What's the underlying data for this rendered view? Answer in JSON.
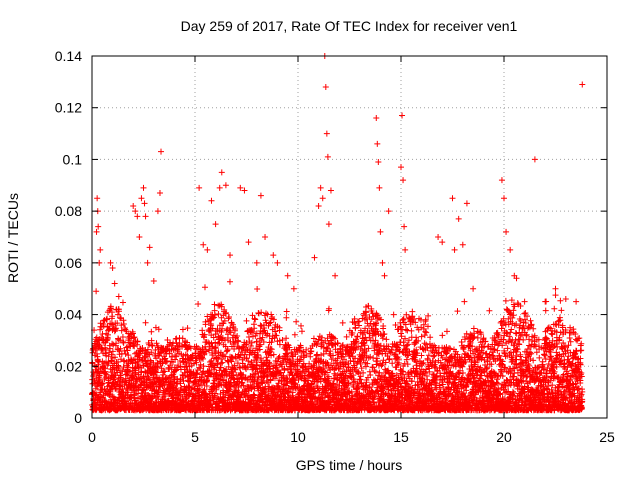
{
  "chart_data": {
    "type": "scatter",
    "title": "Day 259 of 2017, Rate Of TEC Index for receiver ven1",
    "xlabel": "GPS time / hours",
    "ylabel": "ROTI / TECUs",
    "xlim": [
      0,
      25
    ],
    "ylim": [
      0,
      0.14
    ],
    "xticks": [
      0,
      5,
      10,
      15,
      20,
      25
    ],
    "yticks": [
      0,
      0.02,
      0.04,
      0.06,
      0.08,
      0.1,
      0.12,
      0.14
    ],
    "xtick_labels": [
      "0",
      "5",
      "10",
      "15",
      "20",
      "25"
    ],
    "ytick_labels": [
      "0",
      "0.02",
      "0.04",
      "0.06",
      "0.08",
      "0.1",
      "0.12",
      "0.14"
    ],
    "grid": true,
    "marker": "+",
    "series": [
      {
        "name": "ROTI",
        "color": "#ff0000",
        "dense_band": {
          "x_start": 0.0,
          "x_end": 23.8,
          "typical_min": 0.003,
          "typical_max": 0.035
        },
        "points": [
          [
            0.1,
            0.034
          ],
          [
            0.2,
            0.049
          ],
          [
            0.22,
            0.072
          ],
          [
            0.25,
            0.085
          ],
          [
            0.28,
            0.08
          ],
          [
            0.3,
            0.074
          ],
          [
            0.35,
            0.06
          ],
          [
            0.4,
            0.065
          ],
          [
            0.9,
            0.06
          ],
          [
            1.0,
            0.058
          ],
          [
            1.1,
            0.052
          ],
          [
            1.3,
            0.047
          ],
          [
            2.0,
            0.082
          ],
          [
            2.1,
            0.08
          ],
          [
            2.2,
            0.078
          ],
          [
            2.3,
            0.07
          ],
          [
            2.4,
            0.085
          ],
          [
            2.5,
            0.089
          ],
          [
            2.55,
            0.083
          ],
          [
            2.6,
            0.078
          ],
          [
            2.7,
            0.06
          ],
          [
            2.8,
            0.066
          ],
          [
            3.0,
            0.053
          ],
          [
            3.2,
            0.08
          ],
          [
            3.3,
            0.087
          ],
          [
            3.35,
            0.103
          ],
          [
            5.2,
            0.089
          ],
          [
            5.4,
            0.067
          ],
          [
            5.6,
            0.065
          ],
          [
            5.8,
            0.084
          ],
          [
            6.0,
            0.075
          ],
          [
            6.2,
            0.089
          ],
          [
            6.3,
            0.095
          ],
          [
            6.5,
            0.09
          ],
          [
            6.7,
            0.063
          ],
          [
            7.2,
            0.089
          ],
          [
            7.4,
            0.088
          ],
          [
            7.6,
            0.068
          ],
          [
            8.0,
            0.06
          ],
          [
            8.2,
            0.086
          ],
          [
            8.4,
            0.07
          ],
          [
            8.8,
            0.063
          ],
          [
            9.0,
            0.06
          ],
          [
            9.5,
            0.055
          ],
          [
            9.8,
            0.05
          ],
          [
            10.8,
            0.062
          ],
          [
            11.0,
            0.082
          ],
          [
            11.1,
            0.089
          ],
          [
            11.2,
            0.085
          ],
          [
            11.3,
            0.14
          ],
          [
            11.35,
            0.128
          ],
          [
            11.4,
            0.11
          ],
          [
            11.45,
            0.101
          ],
          [
            11.5,
            0.075
          ],
          [
            11.6,
            0.088
          ],
          [
            11.8,
            0.055
          ],
          [
            13.8,
            0.116
          ],
          [
            13.85,
            0.106
          ],
          [
            13.9,
            0.099
          ],
          [
            13.95,
            0.089
          ],
          [
            14.0,
            0.072
          ],
          [
            14.1,
            0.06
          ],
          [
            14.2,
            0.055
          ],
          [
            14.4,
            0.08
          ],
          [
            15.0,
            0.097
          ],
          [
            15.05,
            0.117
          ],
          [
            15.1,
            0.092
          ],
          [
            15.15,
            0.074
          ],
          [
            15.2,
            0.065
          ],
          [
            16.8,
            0.07
          ],
          [
            17.0,
            0.068
          ],
          [
            17.5,
            0.085
          ],
          [
            17.6,
            0.065
          ],
          [
            17.8,
            0.077
          ],
          [
            18.0,
            0.067
          ],
          [
            18.2,
            0.083
          ],
          [
            18.5,
            0.05
          ],
          [
            19.9,
            0.092
          ],
          [
            20.0,
            0.085
          ],
          [
            20.1,
            0.072
          ],
          [
            20.3,
            0.065
          ],
          [
            20.5,
            0.055
          ],
          [
            21.0,
            0.045
          ],
          [
            21.5,
            0.1
          ],
          [
            22.0,
            0.045
          ],
          [
            22.5,
            0.05
          ],
          [
            23.0,
            0.046
          ],
          [
            23.5,
            0.045
          ],
          [
            23.8,
            0.129
          ]
        ]
      }
    ]
  }
}
